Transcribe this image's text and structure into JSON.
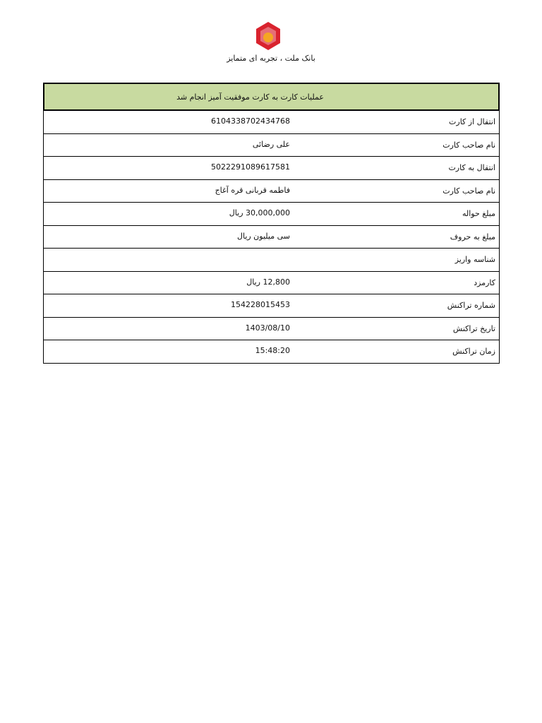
{
  "header": {
    "slogan": "بانک ملت ، تجربه ای متمایز",
    "logo_icon": "bank-mellat-logo"
  },
  "table": {
    "title": "عملیات کارت به کارت  موفقیت آمیز انجام شد",
    "rows": [
      {
        "label": "انتقال از کارت",
        "value": "6104338702434768"
      },
      {
        "label": "نام صاحب کارت",
        "value": "علی رضائی"
      },
      {
        "label": "انتقال به کارت",
        "value": "5022291089617581"
      },
      {
        "label": "نام صاحب کارت",
        "value": "فاطمه قربانی قره آغاج"
      },
      {
        "label": "مبلغ حواله",
        "value": "30,000,000 ریال"
      },
      {
        "label": "مبلغ به حروف",
        "value": "سی میلیون ریال"
      },
      {
        "label": "شناسه واریز",
        "value": ""
      },
      {
        "label": "کارمزد",
        "value": "12,800 ریال"
      },
      {
        "label": "شماره تراکنش",
        "value": "154228015453"
      },
      {
        "label": "تاریخ تراکنش",
        "value": "1403/08/10"
      },
      {
        "label": "زمان تراکنش",
        "value": "15:48:20"
      }
    ]
  },
  "colors": {
    "header_bg": "#c8daa0",
    "logo_red": "#d9232e",
    "logo_orange": "#f5a623"
  }
}
